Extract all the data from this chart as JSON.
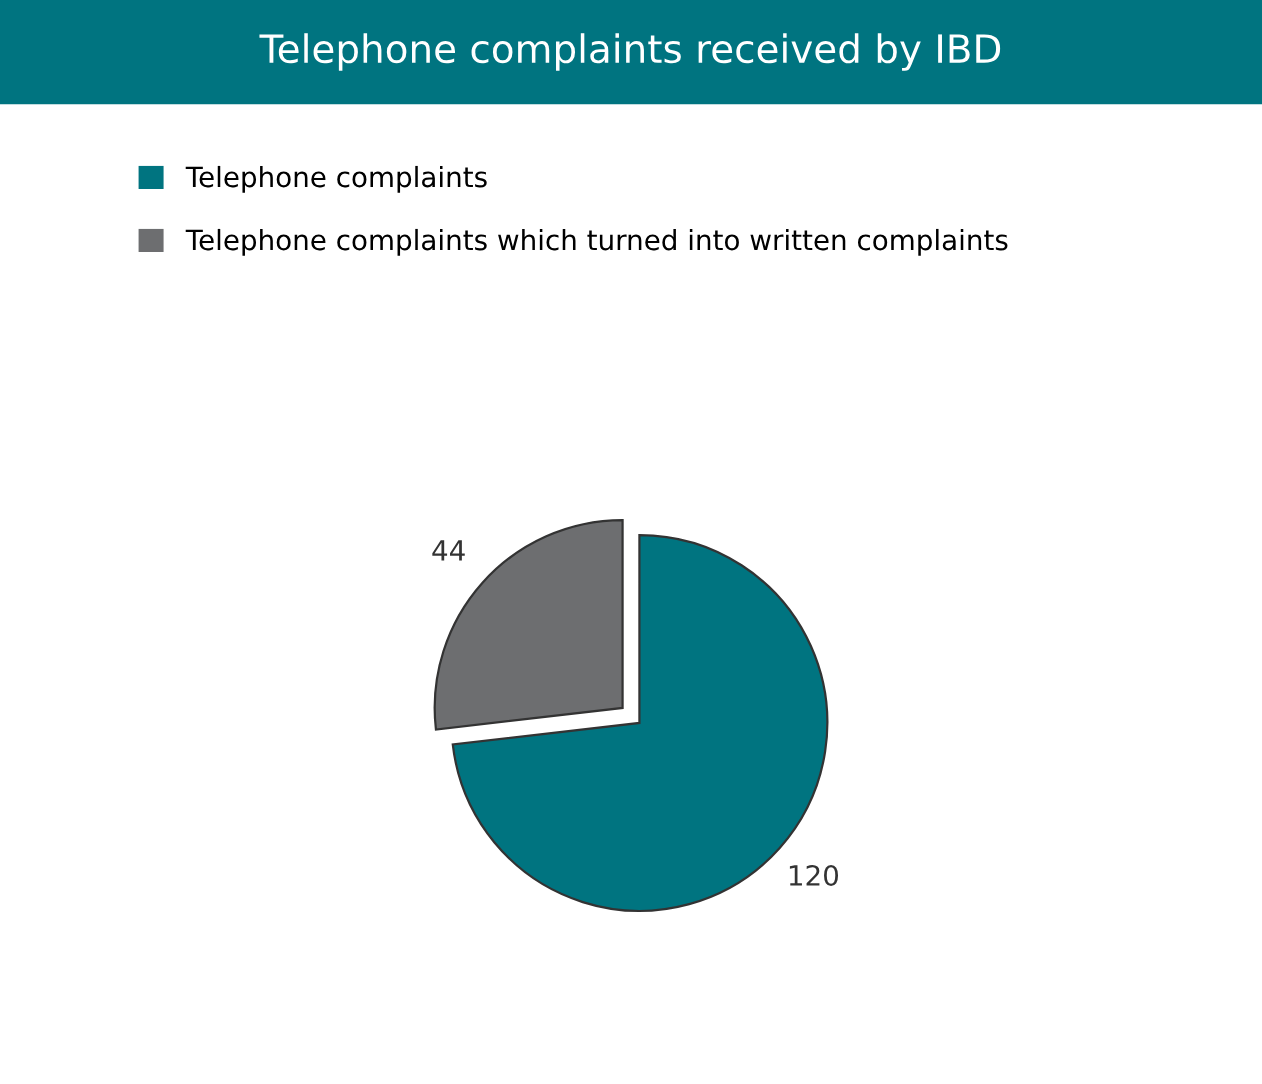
{
  "chart_data": {
    "type": "pie",
    "title": "Telephone complaints received by IBD",
    "categories": [
      "Telephone complaints",
      "Telephone complaints which turned into written complaints"
    ],
    "values": [
      120,
      44
    ],
    "colors": [
      "#007480",
      "#6d6e70"
    ],
    "data_labels": true,
    "legend": "top left"
  }
}
